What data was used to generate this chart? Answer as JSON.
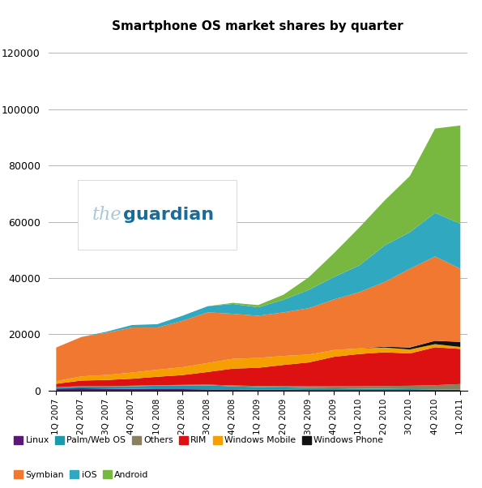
{
  "quarters": [
    "1Q 2007",
    "2Q 2007",
    "3Q 2007",
    "4Q 2007",
    "1Q 2008",
    "2Q 2008",
    "3Q 2008",
    "4Q 2008",
    "1Q 2009",
    "2Q 2009",
    "3Q 2009",
    "4Q 2009",
    "1Q 2010",
    "2Q 2010",
    "3Q 2010",
    "4Q 2010",
    "1Q 2011"
  ],
  "series": {
    "Linux": [
      800,
      900,
      800,
      700,
      600,
      600,
      500,
      500,
      400,
      400,
      300,
      300,
      300,
      300,
      300,
      300,
      300
    ],
    "Palm/Web OS": [
      400,
      600,
      700,
      900,
      1200,
      1300,
      1400,
      1100,
      900,
      800,
      700,
      600,
      500,
      400,
      300,
      200,
      100
    ],
    "Others": [
      100,
      150,
      150,
      200,
      200,
      200,
      300,
      300,
      400,
      500,
      600,
      700,
      800,
      1000,
      1200,
      1500,
      2000
    ],
    "RIM": [
      1200,
      2000,
      2200,
      2500,
      3000,
      3500,
      4500,
      6000,
      6500,
      7500,
      8500,
      10500,
      11500,
      12000,
      11500,
      13500,
      12500
    ],
    "Windows Mobile": [
      900,
      1500,
      1800,
      2200,
      2500,
      2800,
      3200,
      3500,
      3500,
      3200,
      2800,
      2400,
      2000,
      1700,
      1400,
      1100,
      700
    ],
    "Windows Phone": [
      0,
      0,
      0,
      0,
      0,
      0,
      0,
      0,
      0,
      0,
      0,
      0,
      0,
      300,
      700,
      1200,
      1800
    ],
    "Symbian": [
      12000,
      14000,
      15000,
      16000,
      15000,
      16500,
      18000,
      16000,
      15000,
      15500,
      16500,
      18000,
      20000,
      23000,
      28000,
      30000,
      26000
    ],
    "iOS": [
      0,
      0,
      400,
      900,
      1200,
      1800,
      2200,
      3500,
      3000,
      4500,
      6500,
      8000,
      9500,
      13000,
      13000,
      15500,
      16000
    ],
    "Android": [
      0,
      0,
      0,
      0,
      0,
      0,
      0,
      400,
      800,
      1800,
      4500,
      8500,
      13500,
      16000,
      20000,
      30000,
      35000
    ]
  },
  "colors": {
    "Linux": "#5c1777",
    "Palm/Web OS": "#1a9aaa",
    "Others": "#888060",
    "RIM": "#dd1111",
    "Windows Mobile": "#f5a000",
    "Windows Phone": "#111111",
    "Symbian": "#f07830",
    "iOS": "#30a8c0",
    "Android": "#78b840"
  },
  "title": "Smartphone OS market shares by quarter",
  "ylim": [
    0,
    125000
  ],
  "yticks": [
    0,
    20000,
    40000,
    60000,
    80000,
    100000,
    120000
  ],
  "legend_order": [
    "Linux",
    "Palm/Web OS",
    "Others",
    "RIM",
    "Windows Mobile",
    "Windows Phone",
    "Symbian",
    "iOS",
    "Android"
  ],
  "legend_row1": [
    "Linux",
    "Palm/Web OS",
    "Others",
    "RIM",
    "Windows Mobile",
    "Windows Phone"
  ],
  "legend_row2": [
    "Symbian",
    "iOS",
    "Android"
  ]
}
